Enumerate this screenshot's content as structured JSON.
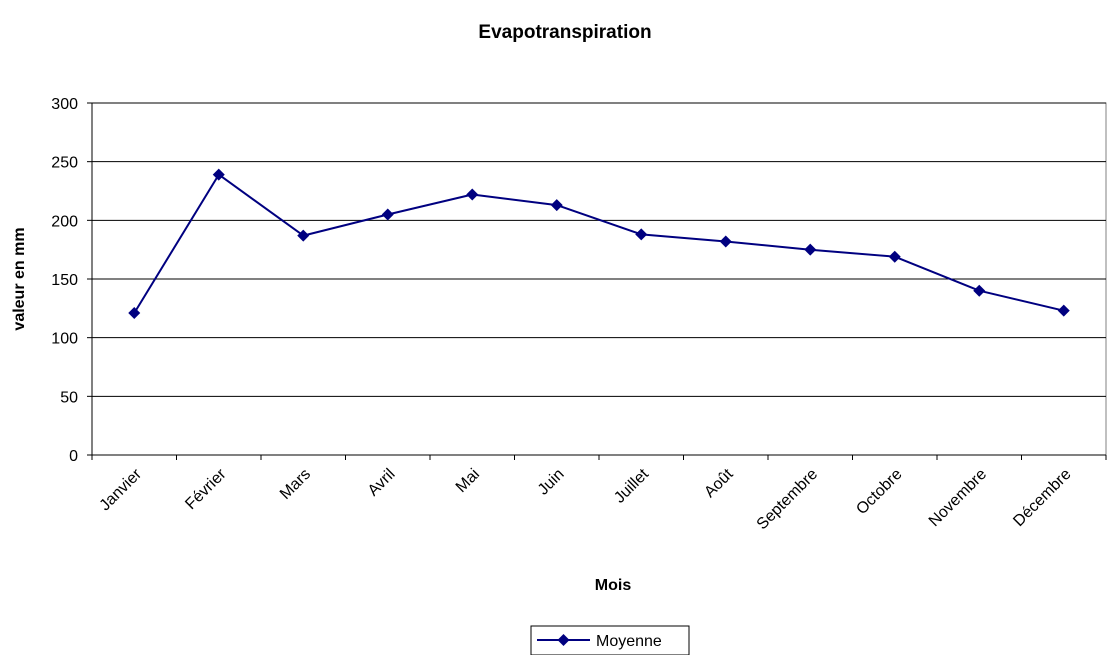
{
  "chart_data": {
    "type": "line",
    "title": "Evapotranspiration",
    "xlabel": "Mois",
    "ylabel": "valeur en mm",
    "categories": [
      "Janvier",
      "Février",
      "Mars",
      "Avril",
      "Mai",
      "Juin",
      "Juillet",
      "Août",
      "Septembre",
      "Octobre",
      "Novembre",
      "Décembre"
    ],
    "series": [
      {
        "name": "Moyenne",
        "values": [
          121,
          239,
          187,
          205,
          222,
          213,
          188,
          182,
          175,
          169,
          140,
          123
        ]
      }
    ],
    "ylim": [
      0,
      300
    ],
    "yticks": [
      "0",
      "50",
      "100",
      "150",
      "200",
      "250",
      "300"
    ],
    "grid": true,
    "legend_position": "bottom",
    "colors": {
      "series": "#000080",
      "grid": "#000000",
      "axis": "#808080"
    }
  }
}
